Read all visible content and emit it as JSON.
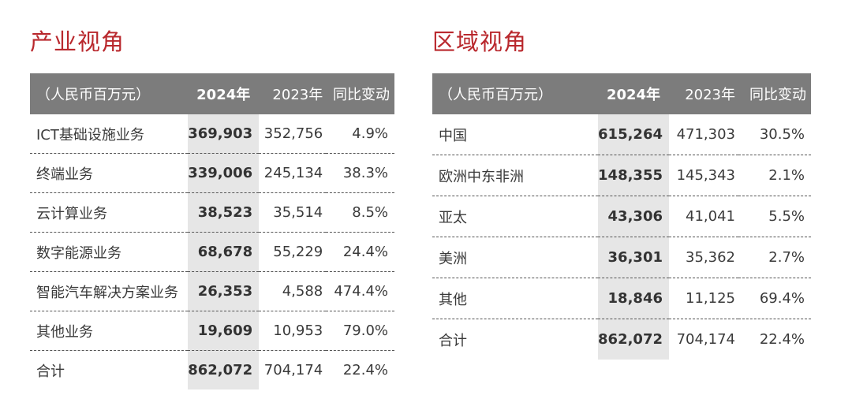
{
  "industry": {
    "title": "产业视角",
    "headers": {
      "unit": "（人民币百万元）",
      "y2024": "2024年",
      "y2023": "2023年",
      "change": "同比变动"
    },
    "rows": [
      {
        "name": "ICT基础设施业务",
        "v2024": "369,903",
        "v2023": "352,756",
        "change": "4.9%"
      },
      {
        "name": "终端业务",
        "v2024": "339,006",
        "v2023": "245,134",
        "change": "38.3%"
      },
      {
        "name": "云计算业务",
        "v2024": "38,523",
        "v2023": "35,514",
        "change": "8.5%"
      },
      {
        "name": "数字能源业务",
        "v2024": "68,678",
        "v2023": "55,229",
        "change": "24.4%"
      },
      {
        "name": "智能汽车解决方案业务",
        "v2024": "26,353",
        "v2023": "4,588",
        "change": "474.4%"
      },
      {
        "name": "其他业务",
        "v2024": "19,609",
        "v2023": "10,953",
        "change": "79.0%"
      },
      {
        "name": "合计",
        "v2024": "862,072",
        "v2023": "704,174",
        "change": "22.4%"
      }
    ]
  },
  "region": {
    "title": "区域视角",
    "headers": {
      "unit": "（人民币百万元）",
      "y2024": "2024年",
      "y2023": "2023年",
      "change": "同比变动"
    },
    "rows": [
      {
        "name": "中国",
        "v2024": "615,264",
        "v2023": "471,303",
        "change": "30.5%"
      },
      {
        "name": "欧洲中东非洲",
        "v2024": "148,355",
        "v2023": "145,343",
        "change": "2.1%"
      },
      {
        "name": "亚太",
        "v2024": "43,306",
        "v2023": "41,041",
        "change": "5.5%"
      },
      {
        "name": "美洲",
        "v2024": "36,301",
        "v2023": "35,362",
        "change": "2.7%"
      },
      {
        "name": "其他",
        "v2024": "18,846",
        "v2023": "11,125",
        "change": "69.4%"
      },
      {
        "name": "合计",
        "v2024": "862,072",
        "v2023": "704,174",
        "change": "22.4%"
      }
    ]
  }
}
